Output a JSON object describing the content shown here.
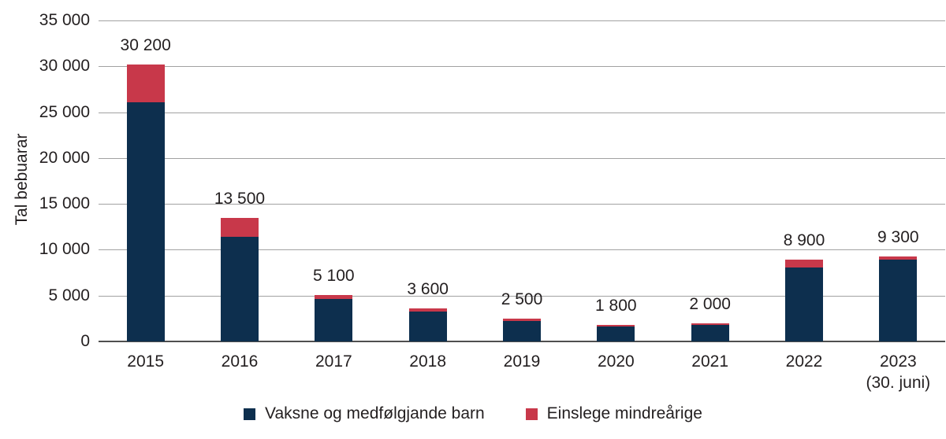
{
  "chart_data": {
    "type": "bar",
    "stacked": true,
    "ylabel": "Tal bebuarar",
    "ylim": [
      0,
      35000
    ],
    "ytick_step": 5000,
    "ytick_labels": [
      "35 000",
      "30 000",
      "25 000",
      "20 000",
      "15 000",
      "10 000",
      "5 000",
      "0"
    ],
    "categories": [
      [
        "2015"
      ],
      [
        "2016"
      ],
      [
        "2017"
      ],
      [
        "2018"
      ],
      [
        "2019"
      ],
      [
        "2020"
      ],
      [
        "2021"
      ],
      [
        "2022"
      ],
      [
        "2023",
        "(30. juni)"
      ]
    ],
    "series": [
      {
        "name": "Vaksne og medfølgjande barn",
        "color": "#0d2f4e",
        "values": [
          26100,
          11400,
          4600,
          3300,
          2200,
          1600,
          1800,
          8100,
          8900
        ]
      },
      {
        "name": "Einslege mindreårige",
        "color": "#c8384a",
        "values": [
          4100,
          2100,
          500,
          300,
          300,
          200,
          200,
          800,
          400
        ]
      }
    ],
    "totals": [
      30200,
      13500,
      5100,
      3600,
      2500,
      1800,
      2000,
      8900,
      9300
    ],
    "total_labels": [
      "30 200",
      "13 500",
      "5 100",
      "3 600",
      "2 500",
      "1 800",
      "2 000",
      "8 900",
      "9 300"
    ],
    "grid": true,
    "legend_position": "bottom",
    "colors": {
      "grid": "#a2a2a2",
      "axis": "#4f4f4f",
      "text": "#231f20",
      "background": "#ffffff"
    }
  }
}
